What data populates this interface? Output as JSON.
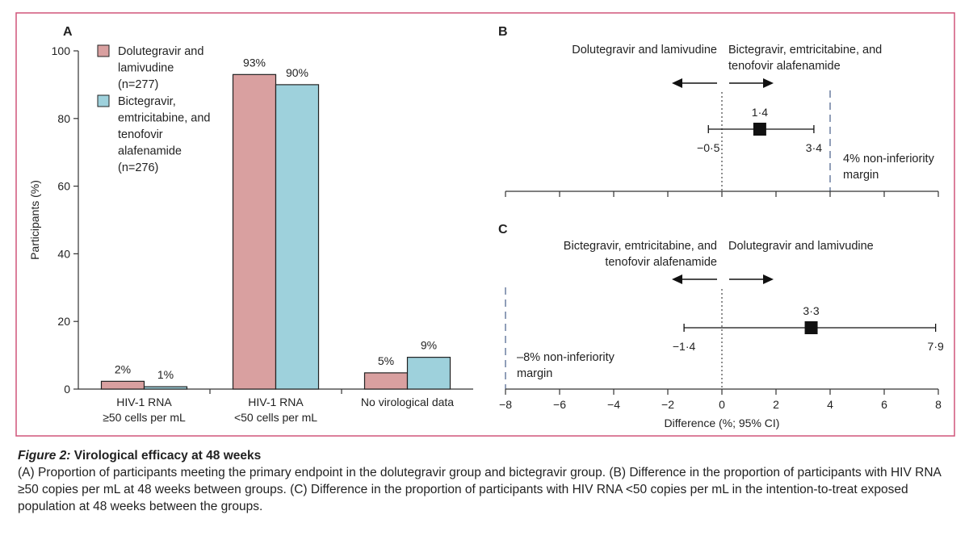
{
  "colors": {
    "frame": "#d0557a",
    "dolutegravir": "#d9a0a0",
    "bictegravir": "#9ed1dc",
    "axis": "#333333",
    "margin_line": "#6b7fa0"
  },
  "chart_data": [
    {
      "panel": "A",
      "type": "bar",
      "ylabel": "Participants (%)",
      "ylim": [
        0,
        100
      ],
      "yticks": [
        0,
        20,
        40,
        60,
        80,
        100
      ],
      "categories": [
        [
          "HIV-1 RNA",
          "≥50 cells per mL"
        ],
        [
          "HIV-1 RNA",
          "<50 cells per mL"
        ],
        [
          "No virological data"
        ]
      ],
      "series": [
        {
          "name": [
            "Dolutegravir and",
            "lamivudine",
            "(n=277)"
          ],
          "values": [
            2.3,
            93,
            4.8
          ],
          "labels": [
            "2%",
            "93%",
            "5%"
          ]
        },
        {
          "name": [
            "Bictegravir,",
            "emtricitabine, and",
            "tenofovir",
            "alafenamide",
            "(n=276)"
          ],
          "values": [
            0.7,
            90,
            9.4
          ],
          "labels": [
            "1%",
            "90%",
            "9%"
          ]
        }
      ]
    },
    {
      "panel": "B",
      "type": "forest",
      "estimate": 1.4,
      "ci_low": -0.5,
      "ci_high": 3.4,
      "estimate_label": "1·4",
      "ci_low_label": "−0·5",
      "ci_high_label": "3·4",
      "margin": 4,
      "margin_label": [
        "4% non-inferiority",
        "margin"
      ],
      "left_label": [
        "Dolutegravir and lamivudine"
      ],
      "right_label": [
        "Bictegravir, emtricitabine, and",
        "tenofovir alafenamide"
      ]
    },
    {
      "panel": "C",
      "type": "forest",
      "estimate": 3.3,
      "ci_low": -1.4,
      "ci_high": 7.9,
      "estimate_label": "3·3",
      "ci_low_label": "−1·4",
      "ci_high_label": "7·9",
      "margin": -8,
      "margin_label": [
        "–8% non-inferiority",
        "margin"
      ],
      "left_label": [
        "Bictegravir, emtricitabine, and",
        "tenofovir alafenamide"
      ],
      "right_label": [
        "Dolutegravir and lamivudine"
      ],
      "xlim": [
        -8,
        8
      ],
      "xticks": [
        -8,
        -6,
        -4,
        -2,
        0,
        2,
        4,
        6,
        8
      ],
      "xtick_labels": [
        "−8",
        "−6",
        "−4",
        "−2",
        "0",
        "2",
        "4",
        "6",
        "8"
      ],
      "xlabel": "Difference (%; 95% CI)"
    }
  ],
  "caption": {
    "figure_label": "Figure 2:",
    "title": " Virological efficacy at 48 weeks",
    "text": "(A) Proportion of participants meeting the primary endpoint in the dolutegravir group and bictegravir group. (B) Difference in the proportion of participants with HIV RNA ≥50 copies per mL at 48 weeks between groups. (C) Difference in the proportion of participants with HIV RNA <50 copies per mL in the intention-to-treat exposed population at 48 weeks between the groups."
  }
}
